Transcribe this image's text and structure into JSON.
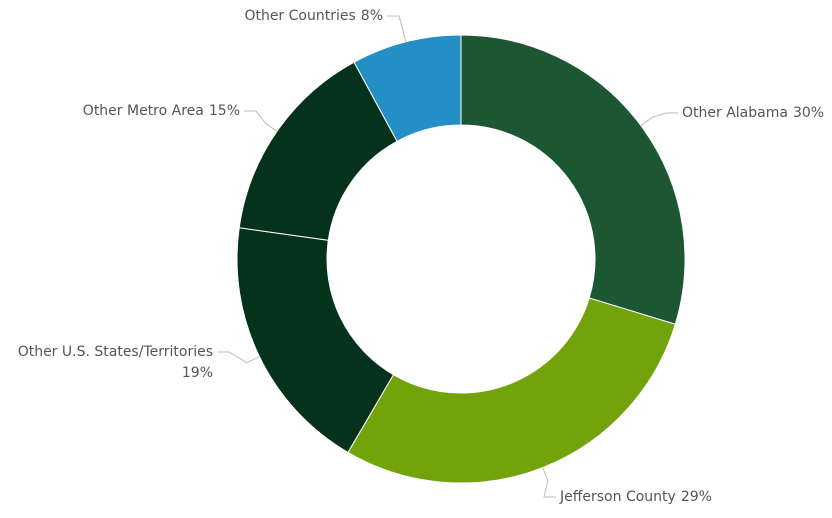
{
  "chart_data": {
    "type": "pie",
    "donut": true,
    "categories": [
      "Other Alabama",
      "Jefferson County",
      "Other U.S. States/Territories",
      "Other Metro Area",
      "Other Countries"
    ],
    "values": [
      30,
      29,
      19,
      15,
      8
    ],
    "value_labels": [
      "30%",
      "29%",
      "19%",
      "15%",
      "8%"
    ],
    "colors": [
      "#1c5632",
      "#72a30a",
      "#04321b",
      "#04321b",
      "#238fc4"
    ]
  }
}
